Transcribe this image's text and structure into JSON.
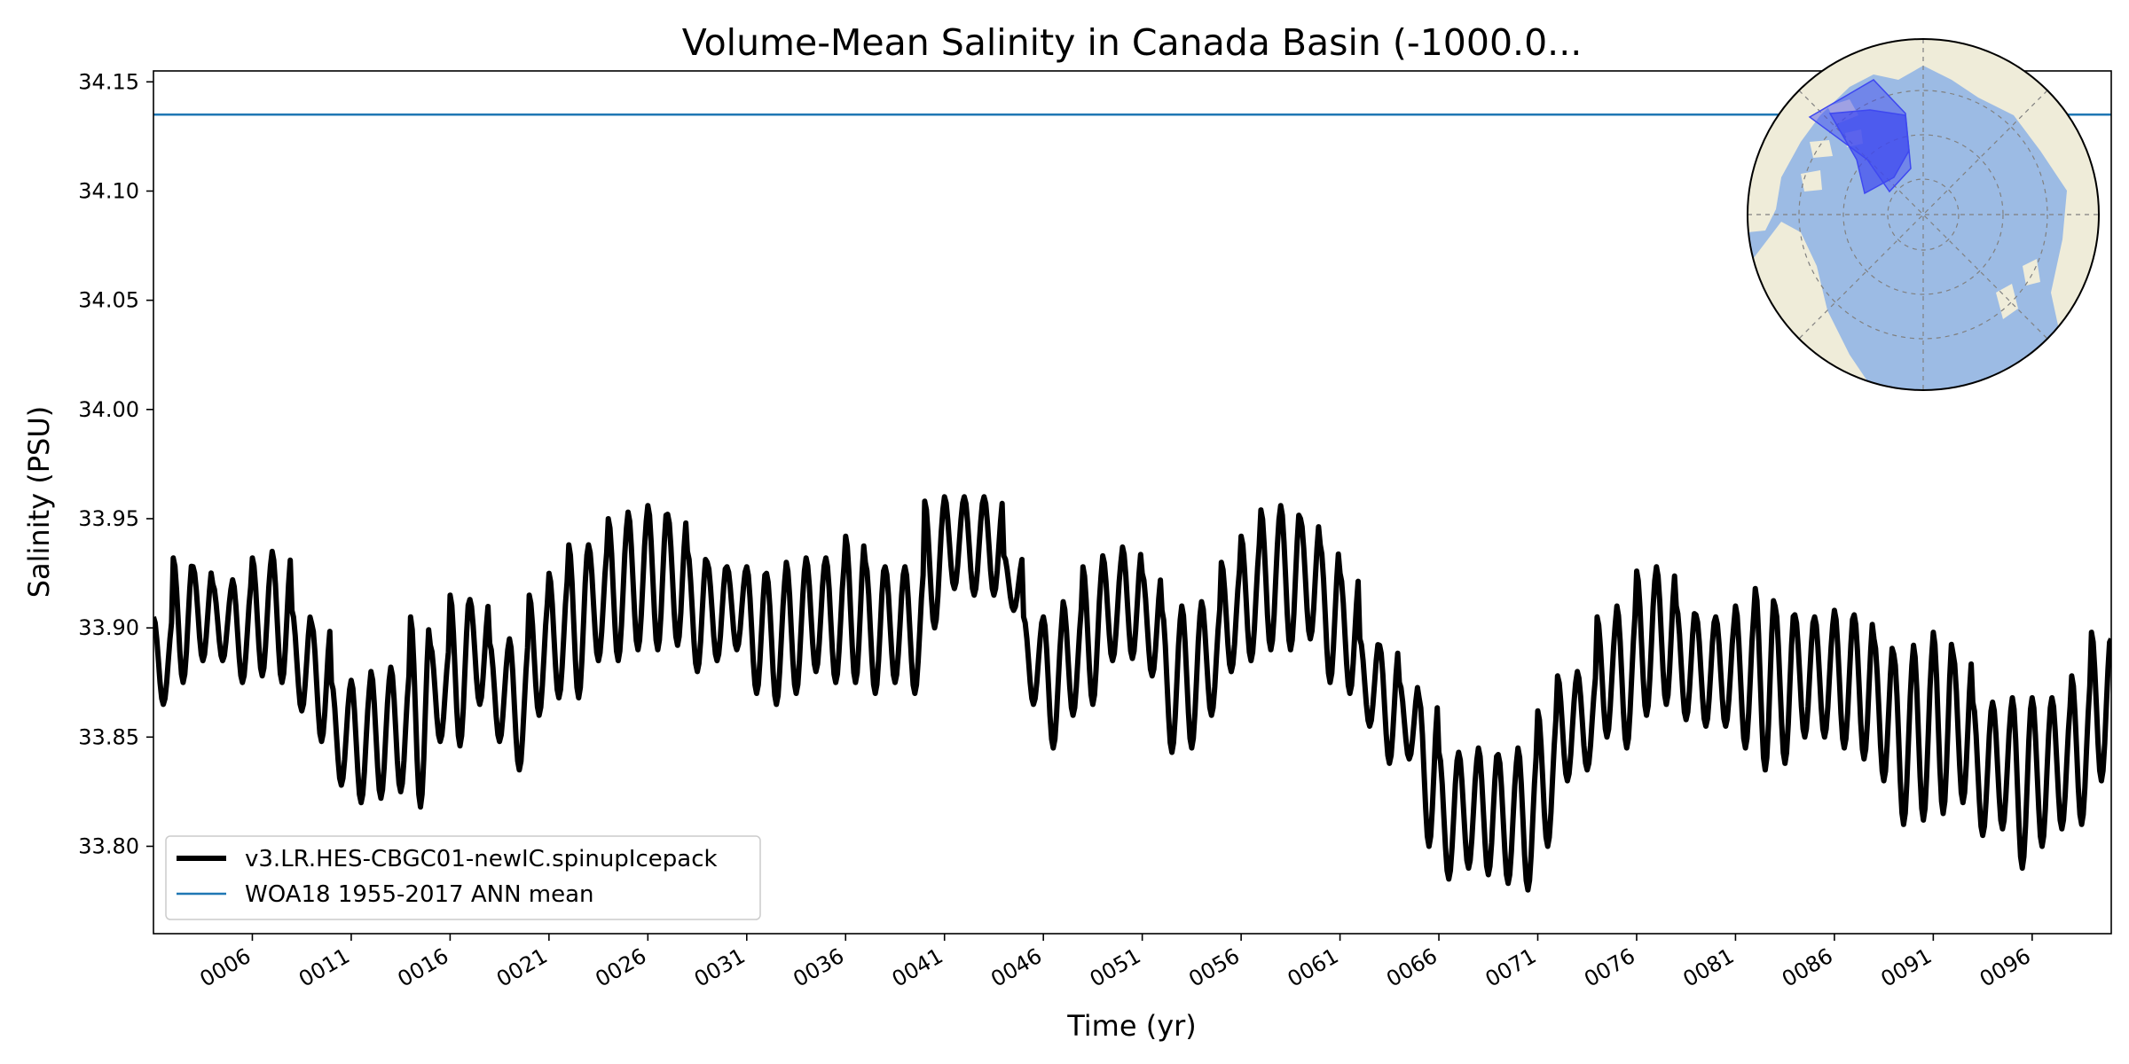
{
  "chart_data": {
    "type": "line",
    "title": "Volume-Mean Salinity in Canada Basin (-1000.0...",
    "xlabel": "Time (yr)",
    "ylabel": "Salinity (PSU)",
    "xlim": [
      1,
      100
    ],
    "ylim": [
      33.76,
      34.155
    ],
    "x_ticks": [
      6,
      11,
      16,
      21,
      26,
      31,
      36,
      41,
      46,
      51,
      56,
      61,
      66,
      71,
      76,
      81,
      86,
      91,
      96
    ],
    "x_tick_labels": [
      "0006",
      "0011",
      "0016",
      "0021",
      "0026",
      "0031",
      "0036",
      "0041",
      "0046",
      "0051",
      "0056",
      "0061",
      "0066",
      "0071",
      "0076",
      "0081",
      "0086",
      "0091",
      "0096"
    ],
    "y_ticks": [
      33.8,
      33.85,
      33.9,
      33.95,
      34.0,
      34.05,
      34.1,
      34.15
    ],
    "y_tick_labels": [
      "33.80",
      "33.85",
      "33.90",
      "33.95",
      "34.00",
      "34.05",
      "34.10",
      "34.15"
    ],
    "seasonal_period_years": 1,
    "series": [
      {
        "name": "v3.LR.HES-CBGC01-newIC.spinupIcepack",
        "color": "#000000",
        "style": "thick-solid",
        "annual_max": [
          33.905,
          33.932,
          33.928,
          33.92,
          33.922,
          33.932,
          33.935,
          33.908,
          33.902,
          33.875,
          33.876,
          33.88,
          33.882,
          33.905,
          33.892,
          33.915,
          33.913,
          33.893,
          33.895,
          33.915,
          33.925,
          33.938,
          33.938,
          33.95,
          33.953,
          33.956,
          33.952,
          33.935,
          33.93,
          33.928,
          33.928,
          33.925,
          33.93,
          33.932,
          33.932,
          33.942,
          33.93,
          33.928,
          33.928,
          33.958,
          33.96,
          33.96,
          33.96,
          33.933,
          33.905,
          33.905,
          33.912,
          33.928,
          33.933,
          33.937,
          33.925,
          33.908,
          33.91,
          33.912,
          33.93,
          33.942,
          33.954,
          33.956,
          33.95,
          33.938,
          33.925,
          33.895,
          33.892,
          33.875,
          33.868,
          33.843,
          33.843,
          33.845,
          33.842,
          33.845,
          33.862,
          33.878,
          33.88,
          33.905,
          33.91,
          33.926,
          33.928,
          33.91,
          33.906,
          33.905,
          33.91,
          33.918,
          33.91,
          33.906,
          33.905,
          33.908,
          33.906,
          33.895,
          33.888,
          33.892,
          33.898,
          33.888,
          33.866,
          33.866,
          33.868,
          33.868,
          33.868,
          33.878,
          33.898,
          33.895
        ],
        "annual_min": [
          33.865,
          33.875,
          33.885,
          33.885,
          33.875,
          33.878,
          33.875,
          33.862,
          33.848,
          33.828,
          33.82,
          33.822,
          33.825,
          33.818,
          33.848,
          33.846,
          33.865,
          33.848,
          33.835,
          33.86,
          33.868,
          33.868,
          33.885,
          33.885,
          33.89,
          33.89,
          33.892,
          33.88,
          33.885,
          33.89,
          33.87,
          33.865,
          33.87,
          33.88,
          33.875,
          33.875,
          33.87,
          33.875,
          33.87,
          33.9,
          33.918,
          33.915,
          33.915,
          33.908,
          33.865,
          33.845,
          33.86,
          33.865,
          33.885,
          33.886,
          33.878,
          33.843,
          33.845,
          33.86,
          33.88,
          33.885,
          33.89,
          33.89,
          33.895,
          33.875,
          33.87,
          33.855,
          33.838,
          33.84,
          33.8,
          33.785,
          33.79,
          33.787,
          33.783,
          33.78,
          33.8,
          33.83,
          33.835,
          33.85,
          33.845,
          33.86,
          33.865,
          33.858,
          33.855,
          33.855,
          33.845,
          33.835,
          33.838,
          33.85,
          33.85,
          33.845,
          33.84,
          33.83,
          33.81,
          33.812,
          33.815,
          33.82,
          33.805,
          33.808,
          33.79,
          33.8,
          33.808,
          33.81,
          33.83,
          33.855
        ]
      },
      {
        "name": "WOA18 1955-2017 ANN mean",
        "color": "#1f77b4",
        "style": "thin-solid",
        "constant_value": 34.135
      }
    ],
    "legend_position": "lower left",
    "grid": false,
    "inset_map": {
      "description_icon": "arctic-polar-map-icon",
      "land_color": "#efecd9",
      "ocean_color": "#9cbbe4",
      "region_color": "#3e48f0"
    }
  }
}
